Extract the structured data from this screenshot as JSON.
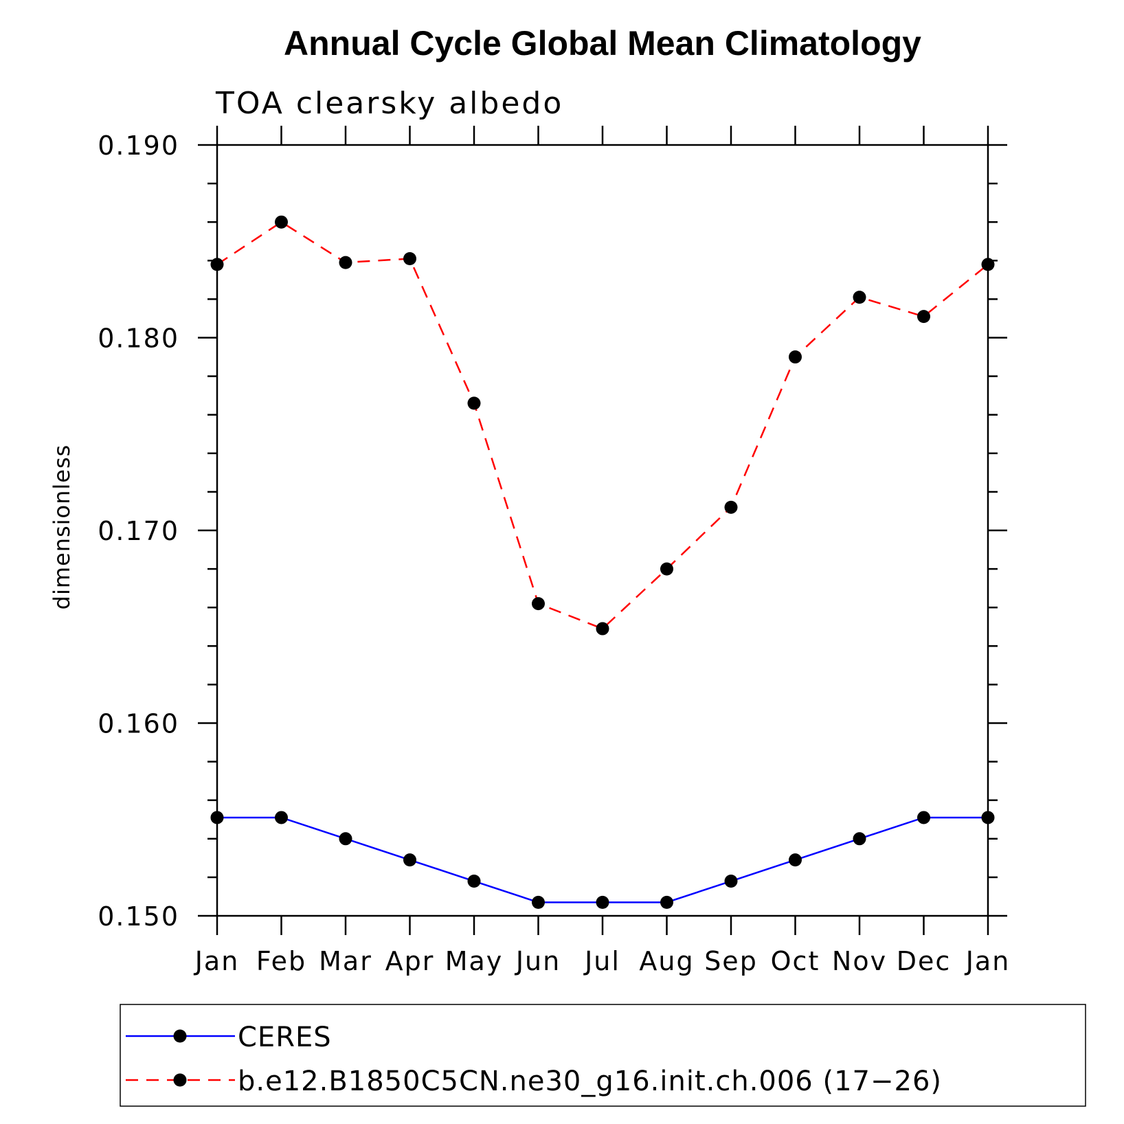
{
  "chart_data": {
    "type": "line",
    "title": "Annual Cycle Global Mean Climatology",
    "subtitle": "TOA clearsky albedo",
    "xlabel": "",
    "ylabel": "dimensionless",
    "categories": [
      "Jan",
      "Feb",
      "Mar",
      "Apr",
      "May",
      "Jun",
      "Jul",
      "Aug",
      "Sep",
      "Oct",
      "Nov",
      "Dec",
      "Jan"
    ],
    "ylim": [
      0.15,
      0.19
    ],
    "yticks": [
      "0.150",
      "0.160",
      "0.170",
      "0.180",
      "0.190"
    ],
    "y_minor_step": 0.002,
    "series": [
      {
        "name": "CERES",
        "color": "#0000ff",
        "style": "solid",
        "marker": "filled-circle",
        "values": [
          0.1551,
          0.1551,
          0.154,
          0.1529,
          0.1518,
          0.1507,
          0.1507,
          0.1507,
          0.1518,
          0.1529,
          0.154,
          0.1551,
          0.1551
        ]
      },
      {
        "name": "b.e12.B1850C5CN.ne30_g16.init.ch.006 (17−26)",
        "color": "#ff0000",
        "style": "dashed",
        "marker": "filled-circle",
        "values": [
          0.1838,
          0.186,
          0.1839,
          0.1841,
          0.1766,
          0.1662,
          0.1649,
          0.168,
          0.1712,
          0.179,
          0.1821,
          0.1811,
          0.1838
        ]
      }
    ],
    "legend_position": "bottom",
    "grid": false
  }
}
